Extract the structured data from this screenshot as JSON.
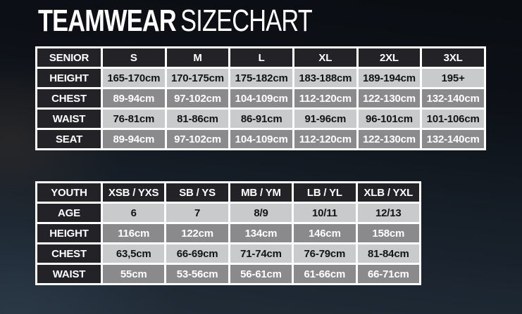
{
  "page": {
    "title_bold": "TEAMWEAR",
    "title_light": "SIZECHART"
  },
  "colors": {
    "background_top": "#0a0d12",
    "background_bottom": "#222d38",
    "header_cell": "#232327",
    "row_light": "#c9cacc",
    "row_dark": "#8a8a8d",
    "grid_border": "#ffffff",
    "text_on_dark": "#ffffff",
    "text_on_light": "#141414"
  },
  "senior_table": {
    "header": [
      "SENIOR",
      "S",
      "M",
      "L",
      "XL",
      "2XL",
      "3XL"
    ],
    "rows": [
      {
        "label": "HEIGHT",
        "shade": "light",
        "values": [
          "165-170cm",
          "170-175cm",
          "175-182cm",
          "183-188cm",
          "189-194cm",
          "195+"
        ]
      },
      {
        "label": "CHEST",
        "shade": "dark",
        "values": [
          "89-94cm",
          "97-102cm",
          "104-109cm",
          "112-120cm",
          "122-130cm",
          "132-140cm"
        ]
      },
      {
        "label": "WAIST",
        "shade": "light",
        "values": [
          "76-81cm",
          "81-86cm",
          "86-91cm",
          "91-96cm",
          "96-101cm",
          "101-106cm"
        ]
      },
      {
        "label": "SEAT",
        "shade": "dark",
        "values": [
          "89-94cm",
          "97-102cm",
          "104-109cm",
          "112-120cm",
          "122-130cm",
          "132-140cm"
        ]
      }
    ]
  },
  "youth_table": {
    "header": [
      "YOUTH",
      "XSB / YXS",
      "SB / YS",
      "MB / YM",
      "LB / YL",
      "XLB / YXL"
    ],
    "rows": [
      {
        "label": "AGE",
        "shade": "light",
        "values": [
          "6",
          "7",
          "8/9",
          "10/11",
          "12/13"
        ]
      },
      {
        "label": "HEIGHT",
        "shade": "dark",
        "values": [
          "116cm",
          "122cm",
          "134cm",
          "146cm",
          "158cm"
        ]
      },
      {
        "label": "CHEST",
        "shade": "light",
        "values": [
          "63,5cm",
          "66-69cm",
          "71-74cm",
          "76-79cm",
          "81-84cm"
        ]
      },
      {
        "label": "WAIST",
        "shade": "dark",
        "values": [
          "55cm",
          "53-56cm",
          "56-61cm",
          "61-66cm",
          "66-71cm"
        ]
      }
    ]
  }
}
